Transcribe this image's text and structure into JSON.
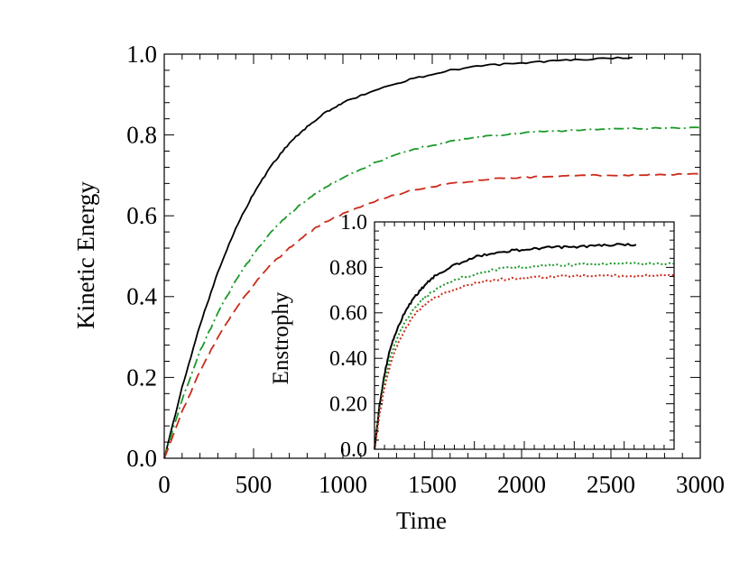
{
  "chart_data": [
    {
      "id": "main",
      "type": "line",
      "xlabel": "Time",
      "ylabel": "Kinetic Energy",
      "xlim": [
        0,
        3000
      ],
      "ylim": [
        0,
        1.0
      ],
      "xticks": [
        0,
        500,
        1000,
        1500,
        2000,
        2500,
        3000
      ],
      "xtick_labels": [
        "0",
        "500",
        "1000",
        "1500",
        "2000",
        "2500",
        "3000"
      ],
      "yticks": [
        0,
        0.2,
        0.4,
        0.6,
        0.8,
        1.0
      ],
      "ytick_labels": [
        "0.0",
        "0.2",
        "0.4",
        "0.6",
        "0.8",
        "1.0"
      ],
      "grid": false,
      "series": [
        {
          "color": "#000000",
          "dash": "solid",
          "x": [
            0,
            100,
            200,
            300,
            400,
            500,
            600,
            700,
            800,
            900,
            1000,
            1200,
            1400,
            1600,
            1800,
            2000,
            2200,
            2400,
            2620
          ],
          "y": [
            0,
            0.175,
            0.33,
            0.46,
            0.57,
            0.655,
            0.725,
            0.78,
            0.82,
            0.855,
            0.88,
            0.915,
            0.94,
            0.96,
            0.972,
            0.978,
            0.984,
            0.988,
            0.992
          ]
        },
        {
          "color": "#1a9a2a",
          "dash": "dashdot",
          "x": [
            0,
            100,
            200,
            300,
            400,
            500,
            600,
            700,
            800,
            900,
            1000,
            1200,
            1400,
            1600,
            1800,
            2000,
            2200,
            2400,
            2600,
            2800,
            3000
          ],
          "y": [
            0,
            0.145,
            0.265,
            0.36,
            0.44,
            0.505,
            0.56,
            0.605,
            0.64,
            0.67,
            0.695,
            0.735,
            0.765,
            0.785,
            0.797,
            0.805,
            0.81,
            0.813,
            0.815,
            0.817,
            0.818
          ]
        },
        {
          "color": "#cc2a1a",
          "dash": "dashed",
          "x": [
            0,
            100,
            200,
            300,
            400,
            500,
            600,
            700,
            800,
            900,
            1000,
            1200,
            1400,
            1600,
            1800,
            2000,
            2200,
            2400,
            2600,
            2800,
            3000
          ],
          "y": [
            0,
            0.115,
            0.215,
            0.3,
            0.37,
            0.43,
            0.48,
            0.52,
            0.555,
            0.585,
            0.605,
            0.64,
            0.665,
            0.68,
            0.69,
            0.695,
            0.698,
            0.7,
            0.701,
            0.702,
            0.703
          ]
        }
      ]
    },
    {
      "id": "inset",
      "type": "line",
      "xlabel": "",
      "ylabel": "Enstrophy",
      "xlim": [
        0,
        3000
      ],
      "ylim": [
        0,
        1.0
      ],
      "yticks": [
        0,
        0.2,
        0.4,
        0.6,
        0.8,
        1.0
      ],
      "ytick_labels": [
        "0.0",
        "0.20",
        "0.40",
        "0.60",
        "0.80",
        "1.0"
      ],
      "grid": false,
      "series": [
        {
          "color": "#000000",
          "dash": "solid",
          "x": [
            0,
            50,
            100,
            150,
            200,
            300,
            400,
            500,
            600,
            800,
            1000,
            1200,
            1400,
            1600,
            1800,
            2000,
            2200,
            2400,
            2620
          ],
          "y": [
            0,
            0.19,
            0.33,
            0.43,
            0.5,
            0.6,
            0.67,
            0.72,
            0.76,
            0.81,
            0.845,
            0.865,
            0.875,
            0.882,
            0.888,
            0.89,
            0.895,
            0.9,
            0.9
          ]
        },
        {
          "color": "#1a9a2a",
          "dash": "dotted",
          "x": [
            0,
            50,
            100,
            150,
            200,
            300,
            400,
            500,
            600,
            800,
            1000,
            1200,
            1400,
            1600,
            1800,
            2000,
            2200,
            2400,
            2600,
            2800,
            3000
          ],
          "y": [
            0,
            0.17,
            0.3,
            0.39,
            0.46,
            0.555,
            0.62,
            0.665,
            0.7,
            0.745,
            0.77,
            0.79,
            0.8,
            0.805,
            0.81,
            0.812,
            0.814,
            0.815,
            0.816,
            0.816,
            0.816
          ]
        },
        {
          "color": "#cc2a1a",
          "dash": "dotted",
          "x": [
            0,
            50,
            100,
            150,
            200,
            300,
            400,
            500,
            600,
            800,
            1000,
            1200,
            1400,
            1600,
            1800,
            2000,
            2200,
            2400,
            2600,
            2800,
            3000
          ],
          "y": [
            0,
            0.15,
            0.27,
            0.36,
            0.43,
            0.525,
            0.59,
            0.635,
            0.665,
            0.705,
            0.73,
            0.745,
            0.752,
            0.757,
            0.76,
            0.762,
            0.763,
            0.764,
            0.764,
            0.764,
            0.764
          ]
        }
      ]
    }
  ]
}
